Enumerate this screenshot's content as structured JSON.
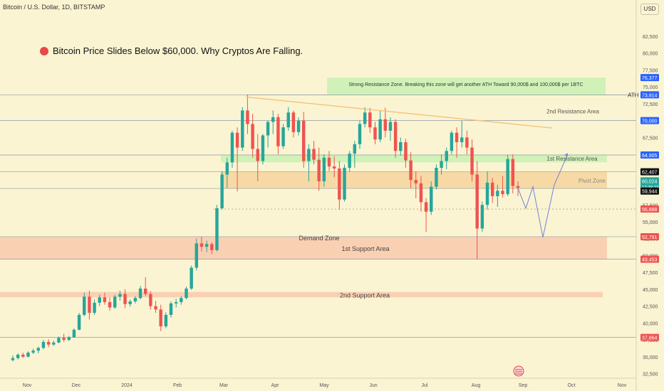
{
  "header": {
    "symbol_line": "Bitcoin / U.S. Dollar, 1D, BITSTAMP",
    "currency_button": "USD"
  },
  "headline": "Bitcoin Price Slides Below $60,000. Why Cryptos Are Falling.",
  "colors": {
    "background": "#fbf4d2",
    "up_candle": "#26a69a",
    "down_candle": "#ef5350",
    "support_zone": "#f9c9ae",
    "pivot_zone": "#f5d49c",
    "resistance_zone": "#c8f1b4",
    "ath_zone": "#c8f1b4"
  },
  "annotations": {
    "strong_resistance": "Strong Resistance Zone. Breaking this zone will get another ATH Toward 90,000$ and  100,000$ per 1BTC",
    "ath": "ATH",
    "resistance_2": "2nd Resistance Area",
    "resistance_1": "1st Resistance Area",
    "pivot": "Pivot Zone",
    "demand": "Demand Zone",
    "support_1": "1st Support Area",
    "support_2": "2nd Support Area"
  },
  "chart_data": {
    "type": "candlestick",
    "y_axis_ticks": [
      "32,500",
      "35,000",
      "37,500",
      "40,000",
      "42,500",
      "45,000",
      "47,500",
      "50,000",
      "52,500",
      "55,000",
      "57,500",
      "60,000",
      "62,500",
      "65,000",
      "67,500",
      "70,000",
      "72,500",
      "75,000",
      "77,500",
      "80,000",
      "82,500"
    ],
    "x_axis_labels": [
      "Nov",
      "Dec",
      "2024",
      "Feb",
      "Mar",
      "Apr",
      "May",
      "Jun",
      "Jul",
      "Aug",
      "Sep",
      "Oct",
      "Nov"
    ],
    "price_labels": [
      {
        "text": "76,377",
        "color": "#2962ff"
      },
      {
        "text": "73,814",
        "color": "#2962ff"
      },
      {
        "text": "70,000",
        "color": "#2962ff"
      },
      {
        "text": "64,905",
        "color": "#2962ff"
      },
      {
        "text": "62,407",
        "color": "#111111"
      },
      {
        "text": "60,024",
        "sub": "12:38:23",
        "color": "#26a69a"
      },
      {
        "text": "59,944",
        "color": "#111111"
      },
      {
        "text": "56,888",
        "color": "#ef5350"
      },
      {
        "text": "52,791",
        "color": "#ef5350"
      },
      {
        "text": "49,453",
        "color": "#ef5350"
      },
      {
        "text": "37,864",
        "color": "#ef5350"
      }
    ],
    "zones": [
      {
        "name": "ath_zone",
        "low": 73814,
        "high": 76377
      },
      {
        "name": "resistance_1",
        "low": 63800,
        "high": 64905
      },
      {
        "name": "pivot",
        "low": 59944,
        "high": 62407
      },
      {
        "name": "support_1",
        "low": 49453,
        "high": 52791
      },
      {
        "name": "support_2",
        "low": 43800,
        "high": 44600
      }
    ],
    "horizontal_lines": [
      73814,
      70000,
      64905,
      62407,
      59944,
      52791,
      49453,
      37864
    ],
    "dotted_line": 56888,
    "candles_ohlc": [
      [
        34500,
        35200,
        34300,
        34800
      ],
      [
        34800,
        35500,
        34600,
        35300
      ],
      [
        35300,
        35600,
        34800,
        35000
      ],
      [
        35000,
        35800,
        34900,
        35600
      ],
      [
        35600,
        36200,
        35400,
        35900
      ],
      [
        35900,
        36500,
        35500,
        36300
      ],
      [
        36300,
        37500,
        36100,
        37200
      ],
      [
        37200,
        37600,
        36400,
        36800
      ],
      [
        36800,
        37400,
        36600,
        37100
      ],
      [
        37100,
        38000,
        37000,
        37800
      ],
      [
        37800,
        38400,
        37200,
        37500
      ],
      [
        37500,
        38100,
        37300,
        37900
      ],
      [
        37900,
        39200,
        37800,
        39000
      ],
      [
        39000,
        41500,
        38900,
        41200
      ],
      [
        41200,
        44500,
        41000,
        43900
      ],
      [
        43900,
        44800,
        40500,
        41500
      ],
      [
        41500,
        43500,
        41200,
        43000
      ],
      [
        43000,
        44200,
        42500,
        43800
      ],
      [
        43800,
        44500,
        42700,
        43100
      ],
      [
        43100,
        43800,
        41800,
        42300
      ],
      [
        42300,
        44200,
        42100,
        43900
      ],
      [
        43900,
        44800,
        43300,
        44300
      ],
      [
        44300,
        45000,
        42200,
        42800
      ],
      [
        42800,
        43500,
        42400,
        43200
      ],
      [
        43200,
        44000,
        42900,
        43700
      ],
      [
        43700,
        45500,
        43500,
        45100
      ],
      [
        45100,
        46800,
        44000,
        44300
      ],
      [
        44300,
        44700,
        42000,
        42500
      ],
      [
        42500,
        43300,
        41500,
        42000
      ],
      [
        42000,
        42700,
        38800,
        39500
      ],
      [
        39500,
        41600,
        39200,
        41200
      ],
      [
        41200,
        43200,
        40800,
        42900
      ],
      [
        42900,
        43600,
        42300,
        43100
      ],
      [
        43100,
        44000,
        42700,
        43700
      ],
      [
        43700,
        45400,
        43500,
        45100
      ],
      [
        45100,
        48500,
        44900,
        48200
      ],
      [
        48200,
        52500,
        47800,
        51800
      ],
      [
        51800,
        52800,
        50600,
        51300
      ],
      [
        51300,
        52200,
        50500,
        51700
      ],
      [
        51700,
        52000,
        50200,
        50800
      ],
      [
        50800,
        57500,
        50600,
        57000
      ],
      [
        57000,
        62500,
        56800,
        62000
      ],
      [
        62000,
        64500,
        60000,
        63800
      ],
      [
        63800,
        68500,
        63000,
        68200
      ],
      [
        68200,
        69000,
        59500,
        66000
      ],
      [
        66000,
        72000,
        65500,
        71500
      ],
      [
        71500,
        73814,
        68000,
        69500
      ],
      [
        69500,
        71000,
        64500,
        65800
      ],
      [
        65800,
        68000,
        61000,
        64000
      ],
      [
        64000,
        68000,
        63500,
        67800
      ],
      [
        67800,
        70000,
        66000,
        69800
      ],
      [
        69800,
        71500,
        68000,
        70500
      ],
      [
        70500,
        71000,
        65000,
        66200
      ],
      [
        66200,
        69500,
        65800,
        69000
      ],
      [
        69000,
        72000,
        68500,
        71200
      ],
      [
        71200,
        71500,
        67500,
        68300
      ],
      [
        68300,
        70500,
        67800,
        70000
      ],
      [
        70000,
        71300,
        63000,
        64000
      ],
      [
        64000,
        66500,
        61000,
        65800
      ],
      [
        65800,
        67000,
        63500,
        64200
      ],
      [
        64200,
        66000,
        59600,
        61000
      ],
      [
        61000,
        65000,
        60200,
        64500
      ],
      [
        64500,
        65500,
        62500,
        63200
      ],
      [
        63200,
        64700,
        61600,
        62900
      ],
      [
        62900,
        64000,
        56800,
        58300
      ],
      [
        58300,
        63500,
        58000,
        63000
      ],
      [
        63000,
        65500,
        62400,
        65100
      ],
      [
        65100,
        67000,
        63000,
        66500
      ],
      [
        66500,
        70000,
        65800,
        69500
      ],
      [
        69500,
        72000,
        69000,
        71200
      ],
      [
        71200,
        71900,
        68200,
        69000
      ],
      [
        69000,
        69800,
        66500,
        67200
      ],
      [
        67200,
        71500,
        66800,
        70200
      ],
      [
        70200,
        71900,
        67500,
        68500
      ],
      [
        68500,
        70500,
        67000,
        69800
      ],
      [
        69800,
        70200,
        64500,
        65500
      ],
      [
        65500,
        67500,
        64800,
        66800
      ],
      [
        66800,
        67300,
        63000,
        64100
      ],
      [
        64100,
        65300,
        60000,
        61200
      ],
      [
        61200,
        62500,
        58500,
        60700
      ],
      [
        60700,
        61800,
        56500,
        57900
      ],
      [
        57900,
        58500,
        53500,
        56500
      ],
      [
        56500,
        61000,
        56000,
        60200
      ],
      [
        60200,
        63500,
        59800,
        63000
      ],
      [
        63000,
        65000,
        62000,
        64000
      ],
      [
        64000,
        66000,
        62800,
        65500
      ],
      [
        65500,
        68500,
        65000,
        68200
      ],
      [
        68200,
        69000,
        64500,
        66800
      ],
      [
        66800,
        70000,
        66000,
        67500
      ],
      [
        67500,
        68500,
        65000,
        66000
      ],
      [
        66000,
        67200,
        61000,
        62000
      ],
      [
        62000,
        64000,
        49453,
        54000
      ],
      [
        54000,
        58000,
        53500,
        57500
      ],
      [
        57500,
        62500,
        56800,
        60800
      ],
      [
        60800,
        61500,
        57800,
        58800
      ],
      [
        58800,
        60500,
        57200,
        59600
      ],
      [
        59600,
        61800,
        58600,
        59100
      ],
      [
        59100,
        64905,
        58800,
        64300
      ],
      [
        64300,
        65000,
        59200,
        60300
      ],
      [
        60300,
        61000,
        58800,
        60024
      ]
    ]
  }
}
